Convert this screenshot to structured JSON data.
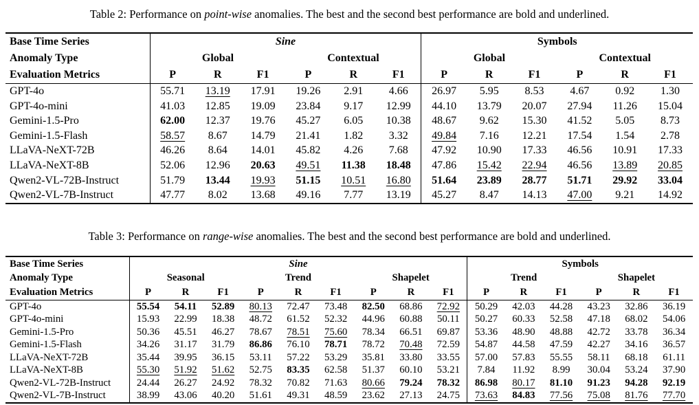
{
  "colors": {
    "text": "#000000",
    "background": "#ffffff",
    "rule": "#000000"
  },
  "tables": [
    {
      "id": "t2",
      "caption_prefix": "Table 2: Performance on ",
      "caption_emph": "point-wise",
      "caption_suffix": " anomalies. The best and the second best performance are bold and underlined.",
      "stub_lines": [
        "Base Time Series",
        "Anomaly Type",
        "Evaluation Metrics"
      ],
      "stub_width": 210,
      "groups": [
        {
          "label": "Sine",
          "italic": true,
          "subgroups": [
            {
              "label": "Global",
              "metrics": [
                "P",
                "R",
                "F1"
              ]
            },
            {
              "label": "Contextual",
              "metrics": [
                "P",
                "R",
                "F1"
              ]
            }
          ]
        },
        {
          "label": "Symbols",
          "italic": false,
          "subgroups": [
            {
              "label": "Global",
              "metrics": [
                "P",
                "R",
                "F1"
              ]
            },
            {
              "label": "Contextual",
              "metrics": [
                "P",
                "R",
                "F1"
              ]
            }
          ]
        }
      ],
      "rows": [
        {
          "model": "GPT-4o",
          "values": [
            "55.71",
            "u:13.19",
            "17.91",
            "19.26",
            "2.91",
            "4.66",
            "26.97",
            "5.95",
            "8.53",
            "4.67",
            "0.92",
            "1.30"
          ]
        },
        {
          "model": "GPT-4o-mini",
          "values": [
            "41.03",
            "12.85",
            "19.09",
            "23.84",
            "9.17",
            "12.99",
            "44.10",
            "13.79",
            "20.07",
            "27.94",
            "11.26",
            "15.04"
          ]
        },
        {
          "model": "Gemini-1.5-Pro",
          "values": [
            "b:62.00",
            "12.37",
            "19.76",
            "45.27",
            "6.05",
            "10.38",
            "48.67",
            "9.62",
            "15.30",
            "41.52",
            "5.05",
            "8.73"
          ]
        },
        {
          "model": "Gemini-1.5-Flash",
          "values": [
            "u:58.57",
            "8.67",
            "14.79",
            "21.41",
            "1.82",
            "3.32",
            "u:49.84",
            "7.16",
            "12.21",
            "17.54",
            "1.54",
            "2.78"
          ]
        },
        {
          "model": "LLaVA-NeXT-72B",
          "values": [
            "46.26",
            "8.64",
            "14.01",
            "45.82",
            "4.26",
            "7.68",
            "47.92",
            "10.90",
            "17.33",
            "46.56",
            "10.91",
            "17.33"
          ]
        },
        {
          "model": "LLaVA-NeXT-8B",
          "values": [
            "52.06",
            "12.96",
            "b:20.63",
            "u:49.51",
            "b:11.38",
            "b:18.48",
            "47.86",
            "u:15.42",
            "u:22.94",
            "46.56",
            "u:13.89",
            "u:20.85"
          ]
        },
        {
          "model": "Qwen2-VL-72B-Instruct",
          "values": [
            "51.79",
            "b:13.44",
            "u:19.93",
            "b:51.15",
            "u:10.51",
            "u:16.80",
            "b:51.64",
            "b:23.89",
            "b:28.77",
            "b:51.71",
            "b:29.92",
            "b:33.04"
          ]
        },
        {
          "model": "Qwen2-VL-7B-Instruct",
          "values": [
            "47.77",
            "8.02",
            "13.68",
            "49.16",
            "7.77",
            "13.19",
            "45.27",
            "8.47",
            "14.13",
            "u:47.00",
            "9.21",
            "14.92"
          ]
        }
      ]
    },
    {
      "id": "t3",
      "caption_prefix": "Table 3: Performance on ",
      "caption_emph": "range-wise",
      "caption_suffix": " anomalies. The best and the second best performance are bold and underlined.",
      "stub_lines": [
        "Base Time Series",
        "Anomaly Type",
        "Evaluation Metrics"
      ],
      "stub_width": 180,
      "groups": [
        {
          "label": "Sine",
          "italic": true,
          "subgroups": [
            {
              "label": "Seasonal",
              "metrics": [
                "P",
                "R",
                "F1"
              ]
            },
            {
              "label": "Trend",
              "metrics": [
                "P",
                "R",
                "F1"
              ]
            },
            {
              "label": "Shapelet",
              "metrics": [
                "P",
                "R",
                "F1"
              ]
            }
          ]
        },
        {
          "label": "Symbols",
          "italic": false,
          "subgroups": [
            {
              "label": "Trend",
              "metrics": [
                "P",
                "R",
                "F1"
              ]
            },
            {
              "label": "Shapelet",
              "metrics": [
                "P",
                "R",
                "F1"
              ]
            }
          ]
        }
      ],
      "rows": [
        {
          "model": "GPT-4o",
          "values": [
            "b:55.54",
            "b:54.11",
            "b:52.89",
            "u:80.13",
            "72.47",
            "73.48",
            "b:82.50",
            "68.86",
            "u:72.92",
            "50.29",
            "42.03",
            "44.28",
            "43.23",
            "32.86",
            "36.19"
          ]
        },
        {
          "model": "GPT-4o-mini",
          "values": [
            "15.93",
            "22.99",
            "18.38",
            "48.72",
            "61.52",
            "52.32",
            "44.96",
            "60.88",
            "50.11",
            "50.27",
            "60.33",
            "52.58",
            "47.18",
            "68.02",
            "54.06"
          ]
        },
        {
          "model": "Gemini-1.5-Pro",
          "values": [
            "50.36",
            "45.51",
            "46.27",
            "78.67",
            "u:78.51",
            "u:75.60",
            "78.34",
            "66.51",
            "69.87",
            "53.36",
            "48.90",
            "48.88",
            "42.72",
            "33.78",
            "36.34"
          ]
        },
        {
          "model": "Gemini-1.5-Flash",
          "values": [
            "34.26",
            "31.17",
            "31.79",
            "b:86.86",
            "76.10",
            "b:78.71",
            "78.72",
            "u:70.48",
            "72.59",
            "54.87",
            "44.58",
            "47.59",
            "42.27",
            "34.16",
            "36.57"
          ]
        },
        {
          "model": "LLaVA-NeXT-72B",
          "values": [
            "35.44",
            "39.95",
            "36.15",
            "53.11",
            "57.22",
            "53.29",
            "35.81",
            "33.80",
            "33.55",
            "57.00",
            "57.83",
            "55.55",
            "58.11",
            "68.18",
            "61.11"
          ]
        },
        {
          "model": "LLaVA-NeXT-8B",
          "values": [
            "u:55.30",
            "u:51.92",
            "u:51.62",
            "52.75",
            "b:83.35",
            "62.58",
            "51.37",
            "60.10",
            "53.21",
            "7.84",
            "11.92",
            "8.99",
            "30.04",
            "53.24",
            "37.90"
          ]
        },
        {
          "model": "Qwen2-VL-72B-Instruct",
          "values": [
            "24.44",
            "26.27",
            "24.92",
            "78.32",
            "70.82",
            "71.63",
            "u:80.66",
            "b:79.24",
            "b:78.32",
            "b:86.98",
            "u:80.17",
            "b:81.10",
            "b:91.23",
            "b:94.28",
            "b:92.19"
          ]
        },
        {
          "model": "Qwen2-VL-7B-Instruct",
          "values": [
            "38.99",
            "43.06",
            "40.20",
            "51.61",
            "49.31",
            "48.59",
            "23.62",
            "27.13",
            "24.75",
            "u:73.63",
            "b:84.83",
            "u:77.56",
            "u:75.08",
            "u:81.76",
            "u:77.70"
          ]
        }
      ]
    }
  ]
}
